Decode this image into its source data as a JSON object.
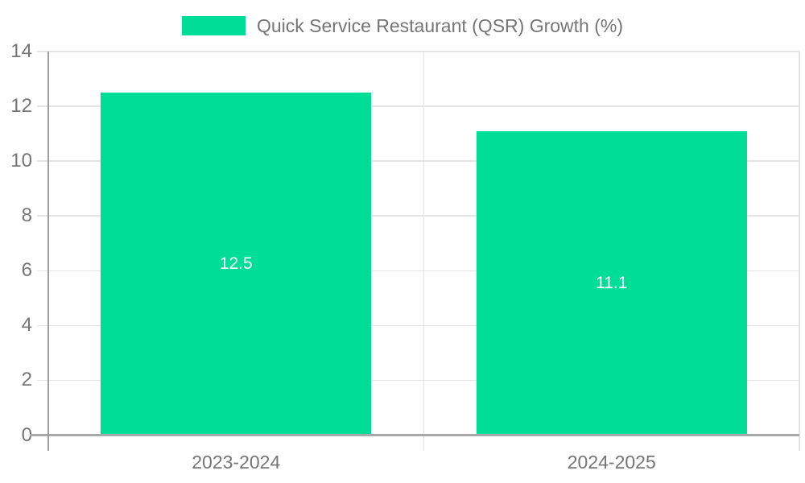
{
  "legend": {
    "label": "Quick Service Restaurant (QSR) Growth (%)"
  },
  "chart_data": {
    "type": "bar",
    "title": "",
    "categories": [
      "2023-2024",
      "2024-2025"
    ],
    "series": [
      {
        "name": "Quick Service Restaurant (QSR) Growth (%)",
        "values": [
          12.5,
          11.1
        ]
      }
    ],
    "value_labels": [
      "12.5",
      "11.1"
    ],
    "xlabel": "",
    "ylabel": "",
    "ylim": [
      0,
      14
    ],
    "yticks": [
      0,
      2,
      4,
      6,
      8,
      10,
      12,
      14
    ],
    "grid": true,
    "legend_position": "top-center",
    "colors": {
      "bar": "#00DD96",
      "tick_text": "#757575",
      "value_text": "#ffffff",
      "gridline": "#e4e4e4",
      "axis": "#a9a9a9"
    }
  }
}
